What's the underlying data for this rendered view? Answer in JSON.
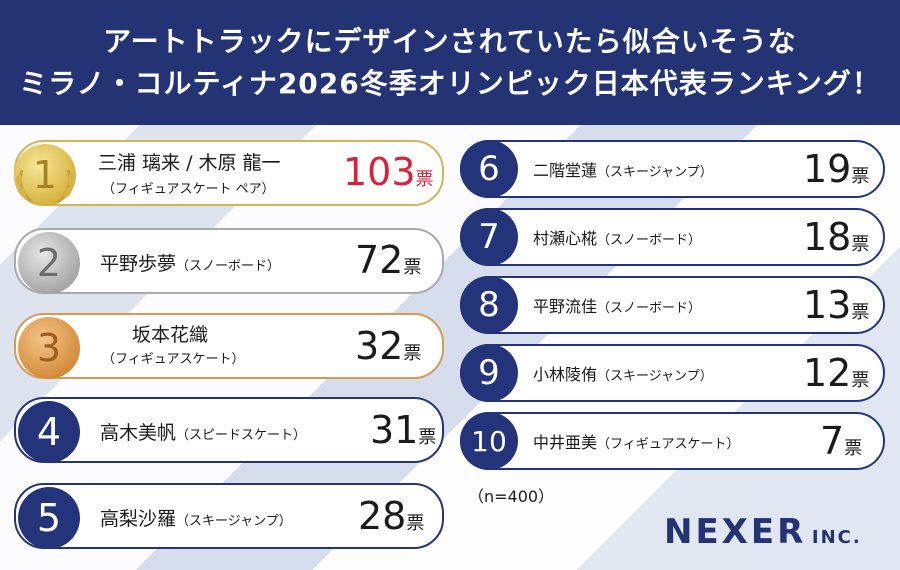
{
  "header": {
    "line1": "アートトラックにデザインされていたら似合いそうな",
    "line2": "ミラノ・コルティナ2026冬季オリンピック日本代表ランキング！"
  },
  "ranking": [
    {
      "rank": "1",
      "name": "三浦 璃来 / 木原 龍一",
      "category": "（フィギュアスケート ペア）",
      "votes": "103",
      "unit": "票"
    },
    {
      "rank": "2",
      "name": "平野歩夢",
      "category": "（スノーボード）",
      "votes": "72",
      "unit": "票"
    },
    {
      "rank": "3",
      "name": "坂本花織",
      "category": "（フィギュアスケート）",
      "votes": "32",
      "unit": "票"
    },
    {
      "rank": "4",
      "name": "高木美帆",
      "category": "（スピードスケート）",
      "votes": "31",
      "unit": "票"
    },
    {
      "rank": "5",
      "name": "高梨沙羅",
      "category": "（スキージャンプ）",
      "votes": "28",
      "unit": "票"
    },
    {
      "rank": "6",
      "name": "二階堂蓮",
      "category": "（スキージャンプ）",
      "votes": "19",
      "unit": "票"
    },
    {
      "rank": "7",
      "name": "村瀬心椛",
      "category": "（スノーボード）",
      "votes": "18",
      "unit": "票"
    },
    {
      "rank": "8",
      "name": "平野流佳",
      "category": "（スノーボード）",
      "votes": "13",
      "unit": "票"
    },
    {
      "rank": "9",
      "name": "小林陵侑",
      "category": "（スキージャンプ）",
      "votes": "12",
      "unit": "票"
    },
    {
      "rank": "10",
      "name": "中井亜美",
      "category": "（フィギュアスケート）",
      "votes": "7",
      "unit": "票"
    }
  ],
  "note": "（n=400）",
  "logo": {
    "main": "NEXER",
    "suffix": "INC."
  },
  "colors": {
    "navy": "#233374",
    "red": "#d8213a",
    "gold": "#d7b43f",
    "silver": "#a8a8a8",
    "bronze": "#d58e3c"
  }
}
